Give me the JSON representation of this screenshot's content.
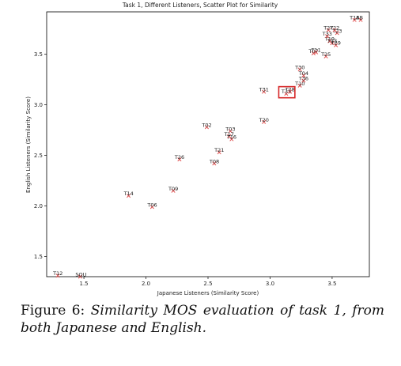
{
  "chart_data": {
    "type": "scatter",
    "title": "Task 1, Different Listeners, Scatter Plot for Similarity",
    "xlabel": "Japanese Listeners (Similarity Score)",
    "ylabel": "English Listeners (Similarity Score)",
    "xlim": [
      1.2,
      3.8
    ],
    "ylim": [
      1.3,
      3.92
    ],
    "xticks": [
      "1.5",
      "2.0",
      "2.5",
      "3.0",
      "3.5"
    ],
    "yticks": [
      "1.5",
      "2.0",
      "2.5",
      "3.0",
      "3.5"
    ],
    "grid": false,
    "marker": "x",
    "marker_color": "#e05050",
    "highlight_color": "#d62728",
    "points": [
      {
        "label": "T12",
        "x": 1.29,
        "y": 1.31
      },
      {
        "label": "SOU",
        "x": 1.47,
        "y": 1.3
      },
      {
        "label": "T14",
        "x": 1.86,
        "y": 2.1
      },
      {
        "label": "T06",
        "x": 2.05,
        "y": 1.99
      },
      {
        "label": "T09",
        "x": 2.22,
        "y": 2.15
      },
      {
        "label": "T26",
        "x": 2.27,
        "y": 2.46
      },
      {
        "label": "T02",
        "x": 2.49,
        "y": 2.78
      },
      {
        "label": "T08",
        "x": 2.55,
        "y": 2.42
      },
      {
        "label": "T21",
        "x": 2.59,
        "y": 2.53
      },
      {
        "label": "T03",
        "x": 2.68,
        "y": 2.74
      },
      {
        "label": "T17",
        "x": 2.67,
        "y": 2.69
      },
      {
        "label": "T16",
        "x": 2.69,
        "y": 2.66
      },
      {
        "label": "T20",
        "x": 2.95,
        "y": 2.83
      },
      {
        "label": "T31",
        "x": 2.95,
        "y": 3.13
      },
      {
        "label": "T32",
        "x": 3.13,
        "y": 3.11
      },
      {
        "label": "T28",
        "x": 3.16,
        "y": 3.13
      },
      {
        "label": "T10",
        "x": 3.24,
        "y": 3.19
      },
      {
        "label": "T36",
        "x": 3.27,
        "y": 3.24
      },
      {
        "label": "T04",
        "x": 3.27,
        "y": 3.29
      },
      {
        "label": "T30",
        "x": 3.24,
        "y": 3.35
      },
      {
        "label": "T07",
        "x": 3.35,
        "y": 3.51
      },
      {
        "label": "T11",
        "x": 3.37,
        "y": 3.52
      },
      {
        "label": "T25",
        "x": 3.45,
        "y": 3.48
      },
      {
        "label": "T19",
        "x": 3.48,
        "y": 3.63
      },
      {
        "label": "T13",
        "x": 3.5,
        "y": 3.61
      },
      {
        "label": "T29",
        "x": 3.53,
        "y": 3.59
      },
      {
        "label": "T33",
        "x": 3.46,
        "y": 3.68
      },
      {
        "label": "T23",
        "x": 3.54,
        "y": 3.71
      },
      {
        "label": "T27",
        "x": 3.47,
        "y": 3.74
      },
      {
        "label": "T22",
        "x": 3.52,
        "y": 3.74
      },
      {
        "label": "T18",
        "x": 3.68,
        "y": 3.84
      },
      {
        "label": "AB",
        "x": 3.73,
        "y": 3.84
      }
    ],
    "highlight_box": {
      "x_range": [
        3.07,
        3.2
      ],
      "y_range": [
        3.07,
        3.18
      ]
    }
  },
  "caption": {
    "label": "Figure 6:",
    "text": "Similarity MOS evaluation of task 1, from both Japanese and English."
  }
}
